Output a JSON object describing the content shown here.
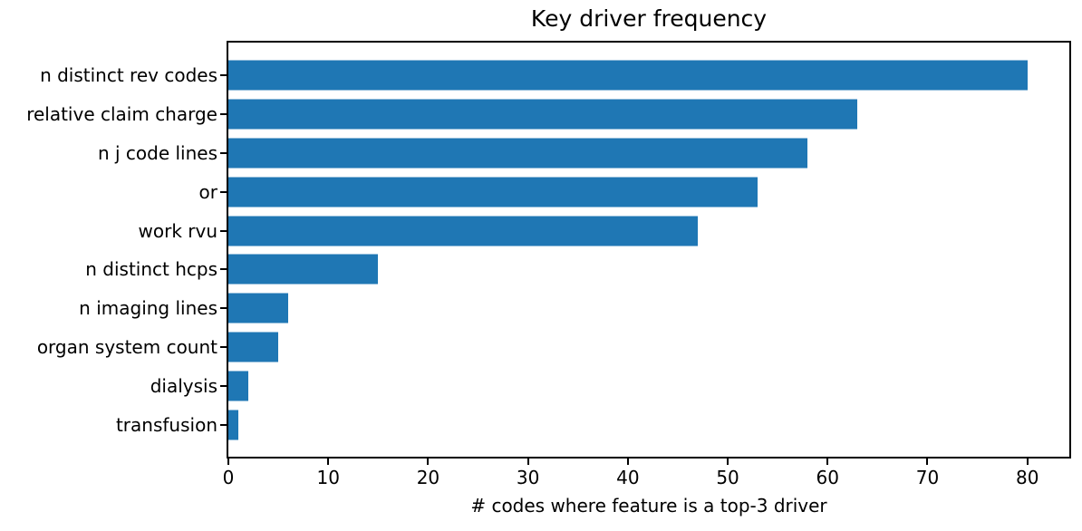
{
  "chart_data": {
    "type": "bar",
    "orientation": "horizontal",
    "title": "Key driver frequency",
    "xlabel": "# codes where feature is a top-3 driver",
    "categories": [
      "n distinct rev codes",
      "relative claim charge",
      "n j code lines",
      "or",
      "work rvu",
      "n distinct hcps",
      "n imaging lines",
      "organ system count",
      "dialysis",
      "transfusion"
    ],
    "values": [
      80,
      63,
      58,
      53,
      47,
      15,
      6,
      5,
      2,
      1
    ],
    "xticks": [
      0,
      10,
      20,
      30,
      40,
      50,
      60,
      70,
      80
    ],
    "xlim": [
      0,
      84.2
    ],
    "bar_color": "#1f77b4",
    "axis_color": "#000000",
    "background_color": "#ffffff",
    "grid": false,
    "legend": false
  }
}
